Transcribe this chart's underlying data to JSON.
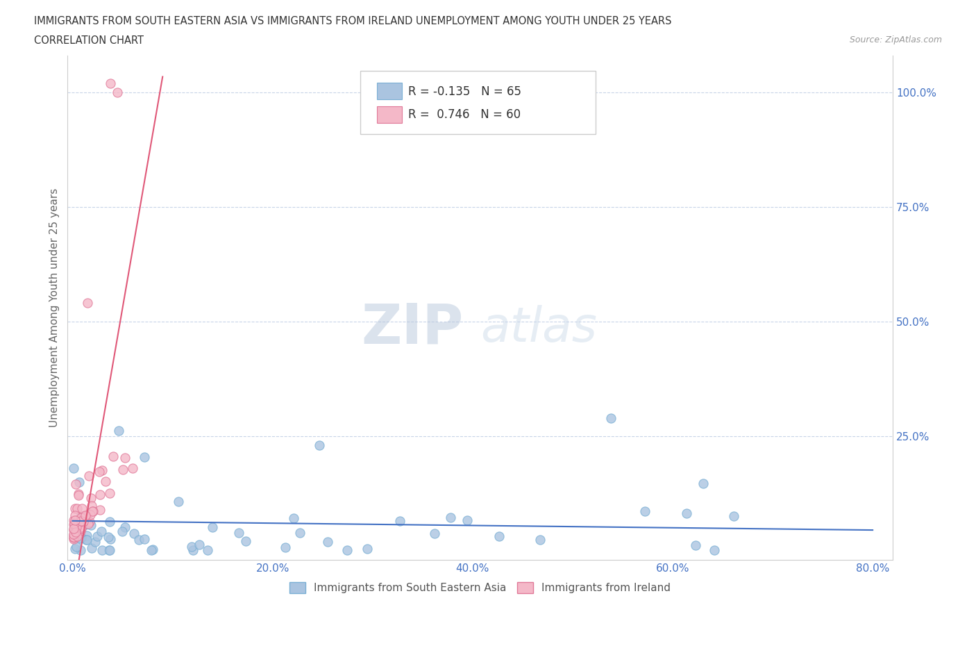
{
  "title_line1": "IMMIGRANTS FROM SOUTH EASTERN ASIA VS IMMIGRANTS FROM IRELAND UNEMPLOYMENT AMONG YOUTH UNDER 25 YEARS",
  "title_line2": "CORRELATION CHART",
  "source_text": "Source: ZipAtlas.com",
  "ylabel": "Unemployment Among Youth under 25 years",
  "xlim": [
    -0.005,
    0.82
  ],
  "ylim": [
    -0.02,
    1.08
  ],
  "xtick_labels": [
    "0.0%",
    "20.0%",
    "40.0%",
    "60.0%",
    "80.0%"
  ],
  "xtick_vals": [
    0.0,
    0.2,
    0.4,
    0.6,
    0.8
  ],
  "ytick_labels_right": [
    "100.0%",
    "75.0%",
    "50.0%",
    "25.0%"
  ],
  "ytick_vals": [
    1.0,
    0.75,
    0.5,
    0.25
  ],
  "series1_color": "#aac4e0",
  "series1_edgecolor": "#7aafd4",
  "series2_color": "#f4b8c8",
  "series2_edgecolor": "#e07898",
  "trendline1_color": "#4472c4",
  "trendline2_color": "#e05878",
  "R1": -0.135,
  "N1": 65,
  "R2": 0.746,
  "N2": 60,
  "legend_label1": "Immigrants from South Eastern Asia",
  "legend_label2": "Immigrants from Ireland",
  "watermark_zip": "ZIP",
  "watermark_atlas": "atlas",
  "background_color": "#ffffff",
  "grid_color": "#c8d4e8",
  "title_color": "#333333",
  "seed": 42
}
